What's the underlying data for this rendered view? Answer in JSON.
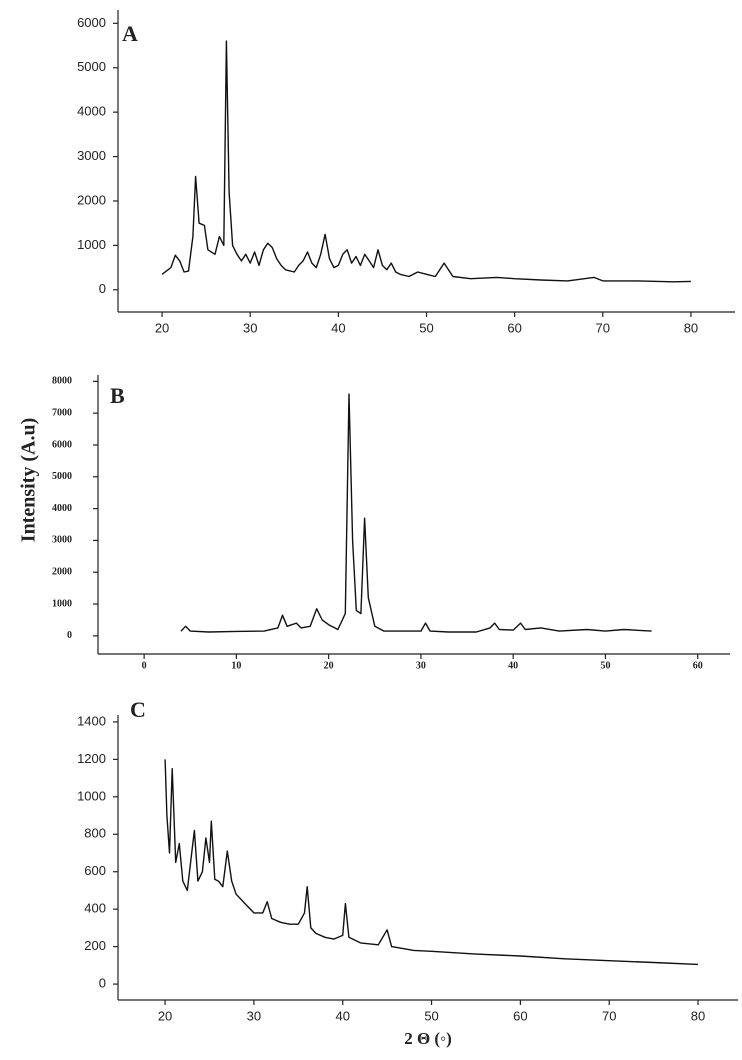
{
  "chart_data": [
    {
      "type": "line",
      "label": "A",
      "color": "#111111",
      "x": [
        20,
        21,
        21.5,
        22,
        22.5,
        23,
        23.5,
        23.8,
        24.2,
        24.8,
        25.2,
        26,
        26.5,
        27,
        27.3,
        27.6,
        28,
        28.5,
        29,
        29.5,
        30,
        30.5,
        31,
        31.5,
        32,
        32.5,
        33,
        33.5,
        34,
        35,
        35.5,
        36,
        36.5,
        37,
        37.5,
        38,
        38.5,
        39,
        39.5,
        40,
        40.5,
        41,
        41.5,
        42,
        42.5,
        43,
        43.5,
        44,
        44.5,
        45,
        45.5,
        46,
        46.5,
        47,
        48,
        49,
        50,
        51,
        52,
        53,
        55,
        58,
        60,
        63,
        66,
        69,
        70,
        74,
        78,
        80
      ],
      "values": [
        350,
        500,
        780,
        650,
        400,
        420,
        1200,
        2550,
        1500,
        1450,
        900,
        800,
        1200,
        1000,
        5600,
        2200,
        1000,
        800,
        650,
        800,
        600,
        850,
        550,
        900,
        1050,
        950,
        700,
        550,
        450,
        400,
        550,
        650,
        850,
        600,
        500,
        800,
        1250,
        700,
        500,
        550,
        800,
        900,
        600,
        750,
        550,
        800,
        650,
        500,
        900,
        550,
        450,
        600,
        400,
        350,
        300,
        400,
        350,
        300,
        600,
        300,
        250,
        280,
        250,
        220,
        200,
        280,
        200,
        200,
        180,
        190
      ],
      "xlim": [
        15,
        85
      ],
      "xticks": [
        20,
        30,
        40,
        50,
        60,
        70,
        80
      ],
      "ylim": [
        -500,
        6300
      ],
      "yticks": [
        0,
        1000,
        2000,
        3000,
        4000,
        5000,
        6000
      ]
    },
    {
      "type": "line",
      "label": "B",
      "y_label": "Intensity (A.u)",
      "color": "#111111",
      "x": [
        4,
        4.5,
        5,
        7,
        10,
        13,
        14.5,
        15,
        15.5,
        16.5,
        17,
        18,
        18.7,
        19.3,
        20,
        21,
        21.8,
        22.2,
        22.6,
        23,
        23.5,
        23.9,
        24.3,
        25,
        26,
        28,
        30,
        30.5,
        31,
        33,
        36,
        37.5,
        38,
        38.5,
        40,
        40.8,
        41.3,
        43,
        45,
        48,
        50,
        52,
        55
      ],
      "values": [
        150,
        300,
        150,
        120,
        140,
        150,
        250,
        650,
        300,
        400,
        250,
        300,
        850,
        500,
        350,
        200,
        700,
        7600,
        3000,
        800,
        700,
        3700,
        1200,
        300,
        150,
        150,
        150,
        400,
        150,
        120,
        120,
        250,
        400,
        200,
        180,
        400,
        200,
        250,
        150,
        200,
        150,
        200,
        150
      ],
      "xlim": [
        -5,
        63.5
      ],
      "xticks": [
        0,
        10,
        20,
        30,
        40,
        50,
        60
      ],
      "ylim": [
        -570,
        8200
      ],
      "yticks": [
        0,
        1000,
        2000,
        3000,
        4000,
        5000,
        6000,
        7000,
        8000
      ]
    },
    {
      "type": "line",
      "label": "C",
      "x_label": "2 Θ (◦)",
      "color": "#111111",
      "x": [
        20,
        20.2,
        20.5,
        20.8,
        21.2,
        21.6,
        22,
        22.5,
        23,
        23.3,
        23.7,
        24.2,
        24.6,
        25,
        25.2,
        25.6,
        26,
        26.5,
        27,
        27.5,
        28,
        29,
        30,
        31,
        31.5,
        32,
        33,
        34,
        35,
        35.7,
        36,
        36.4,
        37,
        38,
        39,
        40,
        40.3,
        40.7,
        42,
        44,
        45,
        45.5,
        48,
        50,
        55,
        60,
        65,
        70,
        75,
        80
      ],
      "values": [
        1200,
        900,
        700,
        1150,
        650,
        750,
        550,
        500,
        700,
        820,
        550,
        600,
        780,
        650,
        870,
        560,
        550,
        520,
        710,
        550,
        480,
        430,
        380,
        380,
        440,
        350,
        330,
        320,
        320,
        380,
        520,
        300,
        270,
        250,
        240,
        260,
        430,
        250,
        220,
        210,
        290,
        200,
        180,
        175,
        160,
        150,
        135,
        125,
        115,
        105
      ],
      "xlim": [
        14.7,
        84.5
      ],
      "xticks": [
        20,
        30,
        40,
        50,
        60,
        70,
        80
      ],
      "ylim": [
        -85,
        1437
      ],
      "yticks": [
        0,
        200,
        400,
        600,
        800,
        1000,
        1200,
        1400
      ]
    }
  ]
}
